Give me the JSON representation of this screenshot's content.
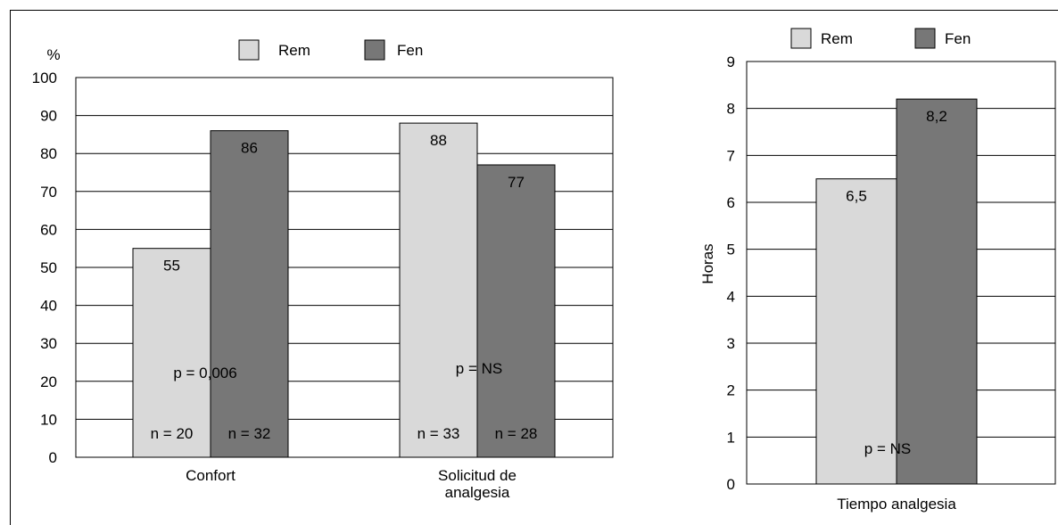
{
  "chart_data": [
    {
      "type": "bar",
      "ylabel": "%",
      "ylim": [
        0,
        100
      ],
      "yticks": [
        "0",
        "10",
        "20",
        "30",
        "40",
        "50",
        "60",
        "70",
        "80",
        "90",
        "100"
      ],
      "grid": true,
      "legend_placement": "top",
      "categories": [
        {
          "lines": [
            "Confort"
          ],
          "p_text": "p = 0,006",
          "n_labels": [
            "n = 20",
            "n = 32"
          ]
        },
        {
          "lines": [
            "Solicitud de",
            "analgesia"
          ],
          "p_text": "p = NS",
          "n_labels": [
            "n = 33",
            "n = 28"
          ]
        }
      ],
      "series": [
        {
          "name": "Rem",
          "values": [
            55,
            88
          ],
          "value_labels": [
            "55",
            "88"
          ],
          "color": "#d9d9d9"
        },
        {
          "name": "Fen",
          "values": [
            86,
            77
          ],
          "value_labels": [
            "86",
            "77"
          ],
          "color": "#777777"
        }
      ]
    },
    {
      "type": "bar",
      "ylabel": "Horas",
      "ylim": [
        0,
        9
      ],
      "yticks": [
        "0",
        "1",
        "2",
        "3",
        "4",
        "5",
        "6",
        "7",
        "8",
        "9"
      ],
      "grid": true,
      "legend_placement": "top",
      "categories": [
        {
          "lines": [
            "Tiempo analgesia"
          ],
          "p_text": "p = NS",
          "n_labels": []
        }
      ],
      "series": [
        {
          "name": "Rem",
          "values": [
            6.5
          ],
          "value_labels": [
            "6,5"
          ],
          "color": "#d9d9d9"
        },
        {
          "name": "Fen",
          "values": [
            8.2
          ],
          "value_labels": [
            "8,2"
          ],
          "color": "#777777"
        }
      ]
    }
  ]
}
